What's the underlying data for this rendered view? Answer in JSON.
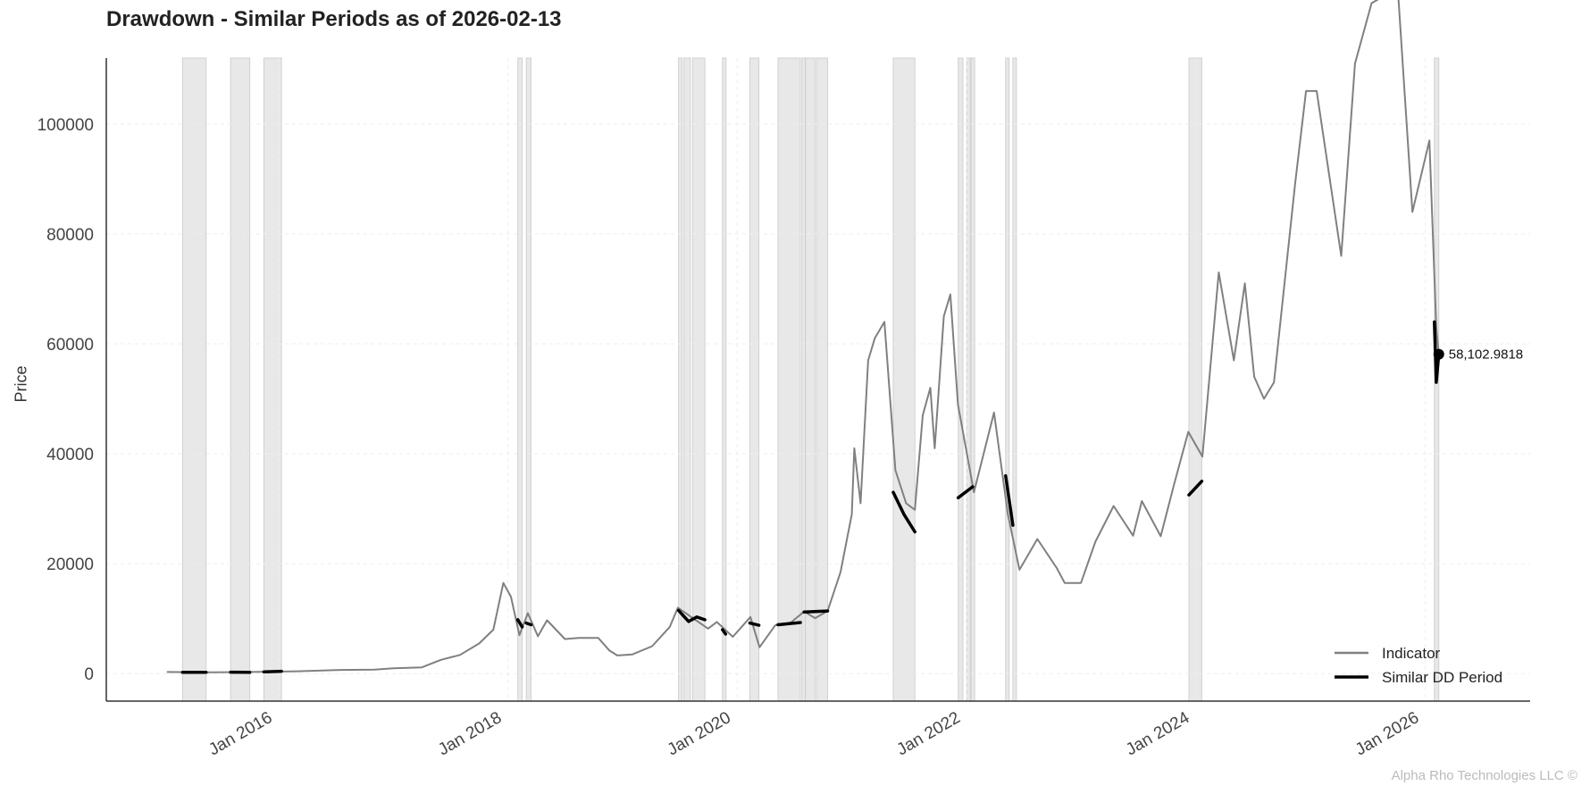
{
  "chart_data": {
    "type": "line",
    "title": "Drawdown - Similar Periods as of 2026-02-13",
    "xlabel": "",
    "ylabel": "Price",
    "xlim": [
      "2014-07-01",
      "2026-12-01"
    ],
    "ylim": [
      -5000,
      112000
    ],
    "yticks": [
      0,
      20000,
      40000,
      60000,
      80000,
      100000
    ],
    "ytick_labels": [
      "0",
      "20000",
      "40000",
      "60000",
      "80000",
      "100000"
    ],
    "xticks": [
      "2016-01-01",
      "2018-01-01",
      "2020-01-01",
      "2022-01-01",
      "2024-01-01",
      "2026-01-01"
    ],
    "xtick_labels": [
      "Jan 2016",
      "Jan 2018",
      "Jan 2020",
      "Jan 2022",
      "Jan 2024",
      "Jan 2026"
    ],
    "grid": true,
    "legend_position": "bottom-right",
    "series": [
      {
        "name": "Indicator",
        "color": "#808080",
        "points": [
          [
            "2015-01-10",
            300
          ],
          [
            "2015-06-01",
            240
          ],
          [
            "2015-11-01",
            330
          ],
          [
            "2016-03-01",
            420
          ],
          [
            "2016-07-01",
            650
          ],
          [
            "2016-11-01",
            720
          ],
          [
            "2017-01-01",
            980
          ],
          [
            "2017-04-01",
            1150
          ],
          [
            "2017-06-01",
            2500
          ],
          [
            "2017-08-01",
            3400
          ],
          [
            "2017-10-01",
            5500
          ],
          [
            "2017-11-15",
            8000
          ],
          [
            "2017-12-17",
            16500
          ],
          [
            "2018-01-10",
            14000
          ],
          [
            "2018-02-06",
            7000
          ],
          [
            "2018-03-05",
            11000
          ],
          [
            "2018-04-06",
            6800
          ],
          [
            "2018-05-05",
            9700
          ],
          [
            "2018-07-01",
            6300
          ],
          [
            "2018-08-15",
            6500
          ],
          [
            "2018-10-15",
            6500
          ],
          [
            "2018-11-20",
            4200
          ],
          [
            "2018-12-15",
            3300
          ],
          [
            "2019-02-01",
            3500
          ],
          [
            "2019-04-05",
            5000
          ],
          [
            "2019-05-31",
            8500
          ],
          [
            "2019-06-26",
            12000
          ],
          [
            "2019-08-15",
            10000
          ],
          [
            "2019-09-30",
            8200
          ],
          [
            "2019-10-28",
            9400
          ],
          [
            "2019-12-18",
            6700
          ],
          [
            "2020-02-12",
            10300
          ],
          [
            "2020-03-12",
            4800
          ],
          [
            "2020-05-01",
            8800
          ],
          [
            "2020-06-20",
            9300
          ],
          [
            "2020-08-01",
            11300
          ],
          [
            "2020-09-05",
            10100
          ],
          [
            "2020-10-15",
            11400
          ],
          [
            "2020-11-25",
            18500
          ],
          [
            "2020-12-31",
            29000
          ],
          [
            "2021-01-08",
            41000
          ],
          [
            "2021-01-28",
            31000
          ],
          [
            "2021-02-21",
            57000
          ],
          [
            "2021-03-14",
            61000
          ],
          [
            "2021-04-14",
            64000
          ],
          [
            "2021-05-19",
            37000
          ],
          [
            "2021-06-22",
            31000
          ],
          [
            "2021-07-20",
            29800
          ],
          [
            "2021-08-14",
            47000
          ],
          [
            "2021-09-07",
            52000
          ],
          [
            "2021-09-21",
            41000
          ],
          [
            "2021-10-20",
            65000
          ],
          [
            "2021-11-10",
            69000
          ],
          [
            "2021-12-04",
            49000
          ],
          [
            "2022-01-24",
            33000
          ],
          [
            "2022-03-29",
            47500
          ],
          [
            "2022-05-12",
            29000
          ],
          [
            "2022-06-18",
            18900
          ],
          [
            "2022-08-14",
            24500
          ],
          [
            "2022-10-15",
            19200
          ],
          [
            "2022-11-09",
            16500
          ],
          [
            "2022-12-31",
            16500
          ],
          [
            "2023-02-15",
            24000
          ],
          [
            "2023-04-14",
            30500
          ],
          [
            "2023-06-15",
            25100
          ],
          [
            "2023-07-13",
            31400
          ],
          [
            "2023-09-11",
            25000
          ],
          [
            "2023-10-24",
            34500
          ],
          [
            "2023-12-08",
            44000
          ],
          [
            "2024-01-22",
            39500
          ],
          [
            "2024-03-14",
            73000
          ],
          [
            "2024-05-01",
            57000
          ],
          [
            "2024-06-05",
            71000
          ],
          [
            "2024-07-05",
            54000
          ],
          [
            "2024-08-05",
            50000
          ],
          [
            "2024-09-06",
            53000
          ],
          [
            "2024-11-12",
            89000
          ],
          [
            "2024-12-17",
            106000
          ],
          [
            "2025-01-20",
            106000
          ],
          [
            "2025-04-08",
            76000
          ],
          [
            "2025-05-22",
            111000
          ],
          [
            "2025-07-14",
            122000
          ],
          [
            "2025-08-14",
            123000
          ],
          [
            "2025-10-06",
            124000
          ],
          [
            "2025-11-21",
            84000
          ],
          [
            "2026-01-14",
            97000
          ],
          [
            "2026-02-05",
            63000
          ],
          [
            "2026-02-13",
            58103
          ]
        ]
      },
      {
        "name": "Similar DD Period",
        "color": "#000000",
        "segments": [
          [
            [
              "2015-03-01",
              250
            ],
            [
              "2015-05-15",
              235
            ]
          ],
          [
            [
              "2015-08-01",
              260
            ],
            [
              "2015-10-01",
              240
            ]
          ],
          [
            [
              "2015-11-15",
              330
            ],
            [
              "2016-01-10",
              430
            ]
          ],
          [
            [
              "2018-02-01",
              9800
            ],
            [
              "2018-02-15",
              8500
            ]
          ],
          [
            [
              "2018-02-28",
              9200
            ],
            [
              "2018-03-15",
              8900
            ]
          ],
          [
            [
              "2019-06-28",
              11500
            ],
            [
              "2019-07-30",
              9500
            ],
            [
              "2019-08-25",
              10300
            ],
            [
              "2019-09-20",
              9800
            ]
          ],
          [
            [
              "2019-11-15",
              8000
            ],
            [
              "2019-11-25",
              7200
            ]
          ],
          [
            [
              "2020-02-10",
              9200
            ],
            [
              "2020-03-10",
              8800
            ]
          ],
          [
            [
              "2020-05-10",
              8900
            ],
            [
              "2020-07-20",
              9300
            ]
          ],
          [
            [
              "2020-08-01",
              11200
            ],
            [
              "2020-10-15",
              11400
            ]
          ],
          [
            [
              "2021-05-12",
              33000
            ],
            [
              "2021-06-15",
              29000
            ],
            [
              "2021-07-20",
              25800
            ]
          ],
          [
            [
              "2021-12-05",
              32000
            ],
            [
              "2022-01-20",
              34000
            ]
          ],
          [
            [
              "2022-05-05",
              36000
            ],
            [
              "2022-05-28",
              27000
            ]
          ],
          [
            [
              "2023-12-10",
              32500
            ],
            [
              "2024-01-20",
              35000
            ]
          ],
          [
            [
              "2026-01-30",
              64000
            ],
            [
              "2026-02-05",
              53000
            ],
            [
              "2026-02-13",
              58103
            ]
          ]
        ]
      }
    ],
    "shaded_periods": [
      [
        "2015-03-01",
        "2015-05-15"
      ],
      [
        "2015-08-01",
        "2015-10-01"
      ],
      [
        "2015-11-15",
        "2016-01-10"
      ],
      [
        "2018-02-01",
        "2018-02-15"
      ],
      [
        "2018-02-28",
        "2018-03-15"
      ],
      [
        "2019-06-28",
        "2019-07-08"
      ],
      [
        "2019-07-15",
        "2019-08-05"
      ],
      [
        "2019-08-12",
        "2019-09-20"
      ],
      [
        "2019-11-15",
        "2019-11-25"
      ],
      [
        "2020-02-10",
        "2020-03-10"
      ],
      [
        "2020-05-10",
        "2020-07-20"
      ],
      [
        "2020-07-25",
        "2020-08-01"
      ],
      [
        "2020-08-05",
        "2020-09-05"
      ],
      [
        "2020-09-10",
        "2020-10-15"
      ],
      [
        "2021-05-12",
        "2021-07-20"
      ],
      [
        "2021-12-05",
        "2021-12-20"
      ],
      [
        "2022-01-01",
        "2022-01-10"
      ],
      [
        "2022-01-15",
        "2022-01-20"
      ],
      [
        "2022-05-05",
        "2022-05-15"
      ],
      [
        "2022-05-28",
        "2022-06-05"
      ],
      [
        "2023-12-10",
        "2024-01-20"
      ],
      [
        "2026-01-30",
        "2026-02-13"
      ]
    ],
    "last_point": {
      "x": "2026-02-13",
      "y": 58102.9818,
      "label": "58,102.9818"
    }
  },
  "legend": {
    "indicator_label": "Indicator",
    "similar_label": "Similar DD Period"
  },
  "watermark": "Alpha Rho Technologies LLC ©"
}
